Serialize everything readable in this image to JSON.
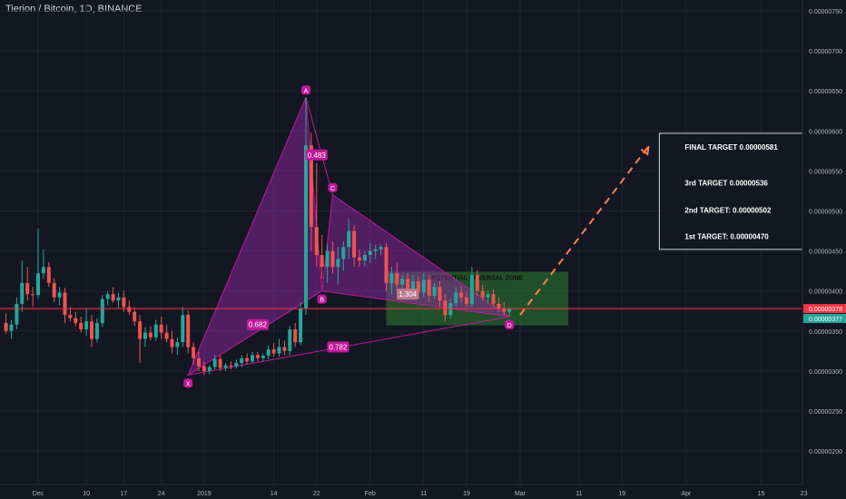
{
  "header": {
    "symbol_title": "Tierion / Bitcoin, 1D, BINANCE"
  },
  "colors": {
    "background": "#131722",
    "grid": "#1f2433",
    "text": "#b2b5be",
    "up": "#26a69a",
    "down": "#ef5350",
    "pattern_fill": "#9c27b0",
    "pattern_line": "#c2189b",
    "zone_fill": "#2e7d32",
    "target_arrow": "#ff7f50",
    "price_line": "#f23645",
    "last_price_badge": "#26a69a"
  },
  "chart_data": {
    "type": "candlestick",
    "ylim": [
      1.77e-06,
      7.54e-06
    ],
    "y_ticks": [
      "0.00000750",
      "0.00000700",
      "0.00000650",
      "0.00000600",
      "0.00000550",
      "0.00000500",
      "0.00000450",
      "0.00000400",
      "0.00000350",
      "0.00000300",
      "0.00000250",
      "0.00000200"
    ],
    "y_tick_values": [
      7.5e-06,
      7e-06,
      6.5e-06,
      6e-06,
      5.5e-06,
      5e-06,
      4.5e-06,
      4e-06,
      3.5e-06,
      3e-06,
      2.5e-06,
      2e-06
    ],
    "x_ticks": [
      "Dec",
      "10",
      "17",
      "24",
      "2019",
      "14",
      "22",
      "Feb",
      "11",
      "19",
      "Mar",
      "11",
      "19",
      "Apr",
      "15",
      "23"
    ],
    "x_tick_days": [
      0,
      9,
      16,
      23,
      31,
      44,
      52,
      62,
      72,
      80,
      90,
      101,
      109,
      121,
      135,
      143
    ],
    "day_zero": "Dec 1",
    "candles": [
      {
        "d": -6,
        "o": 3.6,
        "h": 3.72,
        "l": 3.46,
        "c": 3.5
      },
      {
        "d": -5,
        "o": 3.5,
        "h": 3.64,
        "l": 3.4,
        "c": 3.58
      },
      {
        "d": -4,
        "o": 3.58,
        "h": 3.92,
        "l": 3.52,
        "c": 3.84
      },
      {
        "d": -3,
        "o": 3.84,
        "h": 4.38,
        "l": 3.74,
        "c": 4.1
      },
      {
        "d": -2,
        "o": 4.1,
        "h": 4.3,
        "l": 3.88,
        "c": 3.96
      },
      {
        "d": -1,
        "o": 3.96,
        "h": 4.05,
        "l": 3.8,
        "c": 3.95
      },
      {
        "d": 0,
        "o": 3.95,
        "h": 4.78,
        "l": 3.9,
        "c": 4.22
      },
      {
        "d": 1,
        "o": 4.22,
        "h": 4.52,
        "l": 4.15,
        "c": 4.3
      },
      {
        "d": 2,
        "o": 4.3,
        "h": 4.36,
        "l": 4.05,
        "c": 4.1
      },
      {
        "d": 3,
        "o": 4.1,
        "h": 4.16,
        "l": 3.86,
        "c": 3.92
      },
      {
        "d": 4,
        "o": 3.92,
        "h": 4.05,
        "l": 3.82,
        "c": 3.98
      },
      {
        "d": 5,
        "o": 3.98,
        "h": 4.04,
        "l": 3.6,
        "c": 3.7
      },
      {
        "d": 6,
        "o": 3.7,
        "h": 3.8,
        "l": 3.62,
        "c": 3.66
      },
      {
        "d": 7,
        "o": 3.66,
        "h": 3.74,
        "l": 3.56,
        "c": 3.6
      },
      {
        "d": 8,
        "o": 3.6,
        "h": 3.68,
        "l": 3.48,
        "c": 3.52
      },
      {
        "d": 9,
        "o": 3.52,
        "h": 3.78,
        "l": 3.44,
        "c": 3.62
      },
      {
        "d": 10,
        "o": 3.62,
        "h": 3.7,
        "l": 3.3,
        "c": 3.4
      },
      {
        "d": 11,
        "o": 3.4,
        "h": 3.66,
        "l": 3.36,
        "c": 3.6
      },
      {
        "d": 12,
        "o": 3.6,
        "h": 3.95,
        "l": 3.55,
        "c": 3.9
      },
      {
        "d": 13,
        "o": 3.9,
        "h": 4.0,
        "l": 3.82,
        "c": 3.96
      },
      {
        "d": 14,
        "o": 3.96,
        "h": 4.05,
        "l": 3.85,
        "c": 3.88
      },
      {
        "d": 15,
        "o": 3.88,
        "h": 3.98,
        "l": 3.78,
        "c": 3.92
      },
      {
        "d": 16,
        "o": 3.92,
        "h": 4.0,
        "l": 3.74,
        "c": 3.8
      },
      {
        "d": 17,
        "o": 3.8,
        "h": 3.88,
        "l": 3.7,
        "c": 3.74
      },
      {
        "d": 18,
        "o": 3.74,
        "h": 3.8,
        "l": 3.56,
        "c": 3.62
      },
      {
        "d": 19,
        "o": 3.62,
        "h": 3.7,
        "l": 3.1,
        "c": 3.4
      },
      {
        "d": 20,
        "o": 3.4,
        "h": 3.55,
        "l": 3.3,
        "c": 3.48
      },
      {
        "d": 21,
        "o": 3.48,
        "h": 3.56,
        "l": 3.38,
        "c": 3.42
      },
      {
        "d": 22,
        "o": 3.42,
        "h": 3.64,
        "l": 3.38,
        "c": 3.58
      },
      {
        "d": 23,
        "o": 3.58,
        "h": 3.68,
        "l": 3.4,
        "c": 3.48
      },
      {
        "d": 24,
        "o": 3.48,
        "h": 3.58,
        "l": 3.36,
        "c": 3.4
      },
      {
        "d": 25,
        "o": 3.4,
        "h": 3.5,
        "l": 3.22,
        "c": 3.3
      },
      {
        "d": 26,
        "o": 3.3,
        "h": 3.42,
        "l": 3.2,
        "c": 3.36
      },
      {
        "d": 27,
        "o": 3.36,
        "h": 3.8,
        "l": 3.3,
        "c": 3.7
      },
      {
        "d": 28,
        "o": 3.7,
        "h": 3.76,
        "l": 3.22,
        "c": 3.3
      },
      {
        "d": 29,
        "o": 3.3,
        "h": 3.36,
        "l": 3.08,
        "c": 3.16
      },
      {
        "d": 30,
        "o": 3.16,
        "h": 3.24,
        "l": 3.0,
        "c": 3.06
      },
      {
        "d": 31,
        "o": 3.06,
        "h": 3.12,
        "l": 2.95,
        "c": 3.0
      },
      {
        "d": 32,
        "o": 3.0,
        "h": 3.08,
        "l": 2.96,
        "c": 3.05
      },
      {
        "d": 33,
        "o": 3.05,
        "h": 3.2,
        "l": 3.02,
        "c": 3.15
      },
      {
        "d": 34,
        "o": 3.15,
        "h": 3.2,
        "l": 3.0,
        "c": 3.04
      },
      {
        "d": 35,
        "o": 3.04,
        "h": 3.1,
        "l": 3.0,
        "c": 3.07
      },
      {
        "d": 36,
        "o": 3.07,
        "h": 3.12,
        "l": 3.02,
        "c": 3.06
      },
      {
        "d": 37,
        "o": 3.06,
        "h": 3.14,
        "l": 3.03,
        "c": 3.1
      },
      {
        "d": 38,
        "o": 3.1,
        "h": 3.2,
        "l": 3.05,
        "c": 3.16
      },
      {
        "d": 39,
        "o": 3.16,
        "h": 3.22,
        "l": 3.08,
        "c": 3.12
      },
      {
        "d": 40,
        "o": 3.12,
        "h": 3.24,
        "l": 3.1,
        "c": 3.2
      },
      {
        "d": 41,
        "o": 3.2,
        "h": 3.24,
        "l": 3.12,
        "c": 3.16
      },
      {
        "d": 42,
        "o": 3.16,
        "h": 3.22,
        "l": 3.12,
        "c": 3.19
      },
      {
        "d": 43,
        "o": 3.19,
        "h": 3.32,
        "l": 3.15,
        "c": 3.27
      },
      {
        "d": 44,
        "o": 3.27,
        "h": 3.35,
        "l": 3.18,
        "c": 3.22
      },
      {
        "d": 45,
        "o": 3.22,
        "h": 3.4,
        "l": 3.18,
        "c": 3.3
      },
      {
        "d": 46,
        "o": 3.3,
        "h": 3.38,
        "l": 3.2,
        "c": 3.25
      },
      {
        "d": 47,
        "o": 3.25,
        "h": 3.56,
        "l": 3.2,
        "c": 3.52
      },
      {
        "d": 48,
        "o": 3.52,
        "h": 3.6,
        "l": 3.3,
        "c": 3.36
      },
      {
        "d": 49,
        "o": 3.36,
        "h": 3.86,
        "l": 3.32,
        "c": 3.78
      },
      {
        "d": 50,
        "o": 3.78,
        "h": 6.42,
        "l": 3.7,
        "c": 5.82
      },
      {
        "d": 51,
        "o": 5.82,
        "h": 5.98,
        "l": 4.5,
        "c": 4.8
      },
      {
        "d": 52,
        "o": 4.8,
        "h": 5.6,
        "l": 4.3,
        "c": 4.45
      },
      {
        "d": 53,
        "o": 4.45,
        "h": 4.7,
        "l": 4.15,
        "c": 4.3
      },
      {
        "d": 54,
        "o": 4.3,
        "h": 4.58,
        "l": 4.1,
        "c": 4.5
      },
      {
        "d": 55,
        "o": 4.5,
        "h": 4.62,
        "l": 4.22,
        "c": 4.3
      },
      {
        "d": 56,
        "o": 4.3,
        "h": 4.55,
        "l": 4.08,
        "c": 4.4
      },
      {
        "d": 57,
        "o": 4.4,
        "h": 4.62,
        "l": 4.25,
        "c": 4.55
      },
      {
        "d": 58,
        "o": 4.55,
        "h": 4.9,
        "l": 4.4,
        "c": 4.75
      },
      {
        "d": 59,
        "o": 4.75,
        "h": 4.82,
        "l": 4.3,
        "c": 4.42
      },
      {
        "d": 60,
        "o": 4.42,
        "h": 4.52,
        "l": 4.3,
        "c": 4.38
      },
      {
        "d": 61,
        "o": 4.38,
        "h": 4.5,
        "l": 4.3,
        "c": 4.45
      },
      {
        "d": 62,
        "o": 4.45,
        "h": 4.6,
        "l": 4.35,
        "c": 4.5
      },
      {
        "d": 63,
        "o": 4.5,
        "h": 4.58,
        "l": 4.4,
        "c": 4.52
      },
      {
        "d": 64,
        "o": 4.52,
        "h": 4.58,
        "l": 4.45,
        "c": 4.55
      },
      {
        "d": 65,
        "o": 4.55,
        "h": 4.6,
        "l": 4.0,
        "c": 4.1
      },
      {
        "d": 66,
        "o": 4.1,
        "h": 4.3,
        "l": 3.96,
        "c": 4.22
      },
      {
        "d": 67,
        "o": 4.22,
        "h": 4.35,
        "l": 4.0,
        "c": 4.08
      },
      {
        "d": 68,
        "o": 4.08,
        "h": 4.2,
        "l": 3.98,
        "c": 4.15
      },
      {
        "d": 69,
        "o": 4.15,
        "h": 4.22,
        "l": 3.95,
        "c": 4.0
      },
      {
        "d": 70,
        "o": 4.0,
        "h": 4.2,
        "l": 3.96,
        "c": 4.12
      },
      {
        "d": 71,
        "o": 4.12,
        "h": 4.18,
        "l": 3.9,
        "c": 3.98
      },
      {
        "d": 72,
        "o": 3.98,
        "h": 4.22,
        "l": 3.92,
        "c": 4.14
      },
      {
        "d": 73,
        "o": 4.14,
        "h": 4.2,
        "l": 3.86,
        "c": 3.94
      },
      {
        "d": 74,
        "o": 3.94,
        "h": 4.1,
        "l": 3.9,
        "c": 4.05
      },
      {
        "d": 75,
        "o": 4.05,
        "h": 4.12,
        "l": 3.8,
        "c": 3.88
      },
      {
        "d": 76,
        "o": 3.88,
        "h": 3.96,
        "l": 3.62,
        "c": 3.7
      },
      {
        "d": 77,
        "o": 3.7,
        "h": 3.9,
        "l": 3.66,
        "c": 3.85
      },
      {
        "d": 78,
        "o": 3.85,
        "h": 4.05,
        "l": 3.8,
        "c": 3.98
      },
      {
        "d": 79,
        "o": 3.98,
        "h": 4.06,
        "l": 3.86,
        "c": 3.92
      },
      {
        "d": 80,
        "o": 3.92,
        "h": 4.0,
        "l": 3.8,
        "c": 3.84
      },
      {
        "d": 81,
        "o": 3.84,
        "h": 4.3,
        "l": 3.8,
        "c": 4.2
      },
      {
        "d": 82,
        "o": 4.2,
        "h": 4.26,
        "l": 3.94,
        "c": 4.0
      },
      {
        "d": 83,
        "o": 4.0,
        "h": 4.08,
        "l": 3.88,
        "c": 3.92
      },
      {
        "d": 84,
        "o": 3.92,
        "h": 4.0,
        "l": 3.84,
        "c": 3.96
      },
      {
        "d": 85,
        "o": 3.96,
        "h": 4.02,
        "l": 3.8,
        "c": 3.84
      },
      {
        "d": 86,
        "o": 3.84,
        "h": 3.92,
        "l": 3.74,
        "c": 3.78
      },
      {
        "d": 87,
        "o": 3.78,
        "h": 3.86,
        "l": 3.7,
        "c": 3.74
      },
      {
        "d": 88,
        "o": 3.74,
        "h": 3.8,
        "l": 3.68,
        "c": 3.77
      }
    ],
    "price_line": {
      "value": 3.78e-06,
      "label": "0.00000378"
    },
    "last_price": {
      "value": 3.77e-06,
      "label": "0.00000377"
    },
    "pattern": {
      "name": "bullish bat",
      "points": [
        {
          "label": "X",
          "d": 28,
          "p": 2.95
        },
        {
          "label": "A",
          "d": 50,
          "p": 6.42
        },
        {
          "label": "B",
          "d": 53,
          "p": 4.0
        },
        {
          "label": "C",
          "d": 55,
          "p": 5.2
        },
        {
          "label": "D",
          "d": 88,
          "p": 3.68
        }
      ],
      "ratios": [
        {
          "label": "0.483",
          "d": 52,
          "p": 5.7
        },
        {
          "label": "0.682",
          "d": 41,
          "p": 3.58
        },
        {
          "label": "0.782",
          "d": 56,
          "p": 3.3
        },
        {
          "label": "1.304",
          "d": 69,
          "p": 3.96
        }
      ]
    },
    "zone": {
      "label": "POTENTIAL REVERSAL ZONE",
      "d_start": 65,
      "d_end": 99,
      "top": 4.24,
      "bottom": 3.57
    },
    "target_arrow": {
      "from": {
        "d": 90,
        "p": 3.7
      },
      "to": {
        "d": 114,
        "p": 5.81
      }
    },
    "targets_box": {
      "d_start": 116,
      "d_end": 147,
      "top": 5.97,
      "bottom": 4.52,
      "lines": [
        {
          "text": "FINAL TARGET 0.00000581",
          "p": 5.8
        },
        {
          "text": "3rd TARGET 0.00000536",
          "p": 5.35
        },
        {
          "text": "2nd TARGET: 0.00000502",
          "p": 5.01
        },
        {
          "text": "1st TARGET: 0.00000470",
          "p": 4.68
        }
      ]
    }
  }
}
